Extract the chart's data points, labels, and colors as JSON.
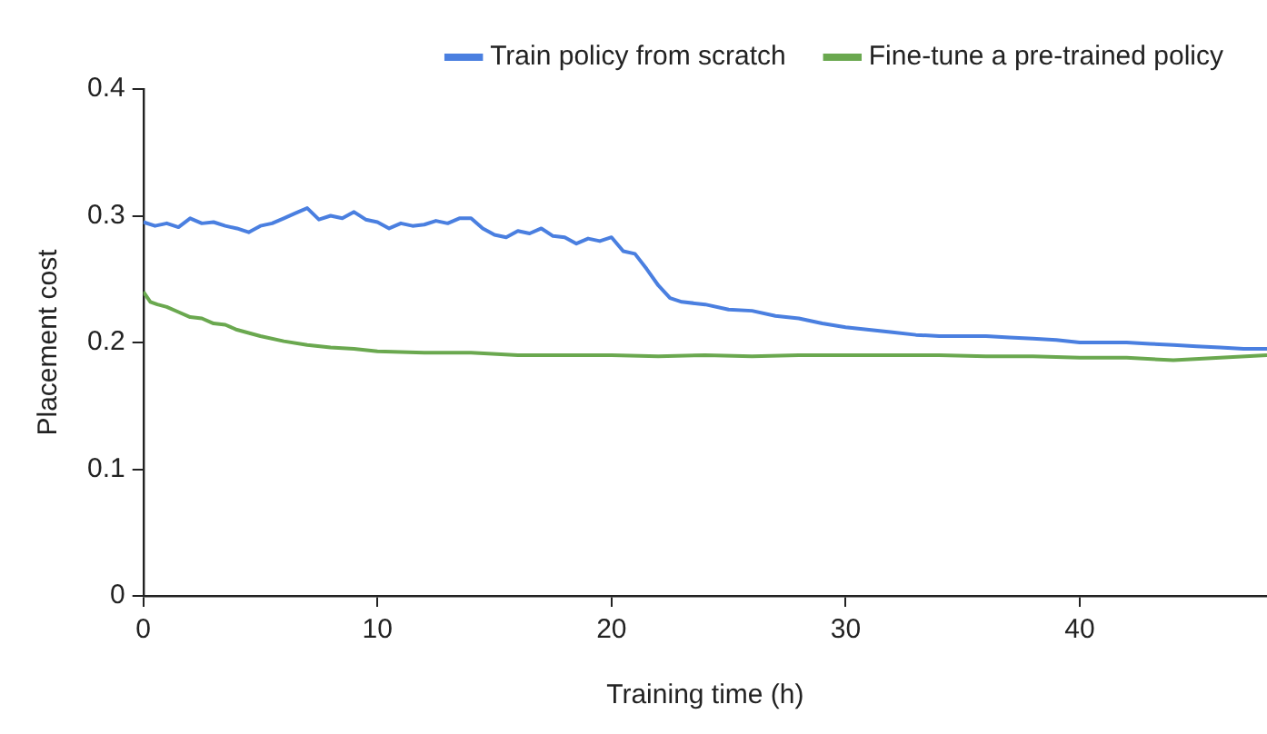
{
  "chart_data": {
    "type": "line",
    "xlabel": "Training time (h)",
    "ylabel": "Placement cost",
    "xlim": [
      0,
      48
    ],
    "xticks": [
      0,
      10,
      20,
      30,
      40
    ],
    "ylim": [
      0,
      0.4
    ],
    "yticks": [
      0,
      0.1,
      0.2,
      0.3,
      0.4
    ],
    "grid": false,
    "legend": "top",
    "marker": "none",
    "line_style": "solid",
    "series": [
      {
        "name": "Train policy from scratch",
        "color": "#4a7fe0",
        "x": [
          0,
          0.5,
          1,
          1.5,
          2,
          2.5,
          3,
          3.5,
          4,
          4.5,
          5,
          5.5,
          6,
          6.5,
          7,
          7.5,
          8,
          8.5,
          9,
          9.5,
          10,
          10.5,
          11,
          11.5,
          12,
          12.5,
          13,
          13.5,
          14,
          14.5,
          15,
          15.5,
          16,
          16.5,
          17,
          17.5,
          18,
          18.5,
          19,
          19.5,
          20,
          20.5,
          21,
          21.5,
          22,
          22.5,
          23,
          24,
          25,
          26,
          27,
          28,
          29,
          30,
          31,
          32,
          33,
          34,
          35,
          36,
          37,
          38,
          39,
          40,
          41,
          42,
          43,
          44,
          45,
          46,
          47,
          48
        ],
        "values": [
          0.295,
          0.292,
          0.294,
          0.291,
          0.298,
          0.294,
          0.295,
          0.292,
          0.29,
          0.287,
          0.292,
          0.294,
          0.298,
          0.302,
          0.306,
          0.297,
          0.3,
          0.298,
          0.303,
          0.297,
          0.295,
          0.29,
          0.294,
          0.292,
          0.293,
          0.296,
          0.294,
          0.298,
          0.298,
          0.29,
          0.285,
          0.283,
          0.288,
          0.286,
          0.29,
          0.284,
          0.283,
          0.278,
          0.282,
          0.28,
          0.283,
          0.272,
          0.27,
          0.258,
          0.245,
          0.235,
          0.232,
          0.23,
          0.226,
          0.225,
          0.221,
          0.219,
          0.215,
          0.212,
          0.21,
          0.208,
          0.206,
          0.205,
          0.205,
          0.205,
          0.204,
          0.203,
          0.202,
          0.2,
          0.2,
          0.2,
          0.199,
          0.198,
          0.197,
          0.196,
          0.195,
          0.195
        ]
      },
      {
        "name": "Fine-tune a pre-trained policy",
        "color": "#6aa84f",
        "x": [
          0,
          0.3,
          0.6,
          1,
          1.5,
          2,
          2.5,
          3,
          3.5,
          4,
          5,
          6,
          7,
          8,
          9,
          10,
          12,
          14,
          16,
          18,
          20,
          22,
          24,
          26,
          28,
          30,
          32,
          34,
          36,
          38,
          40,
          42,
          44,
          46,
          48
        ],
        "values": [
          0.24,
          0.232,
          0.23,
          0.228,
          0.224,
          0.22,
          0.219,
          0.215,
          0.214,
          0.21,
          0.205,
          0.201,
          0.198,
          0.196,
          0.195,
          0.193,
          0.192,
          0.192,
          0.19,
          0.19,
          0.19,
          0.189,
          0.19,
          0.189,
          0.19,
          0.19,
          0.19,
          0.19,
          0.189,
          0.189,
          0.188,
          0.188,
          0.186,
          0.188,
          0.19
        ]
      }
    ]
  }
}
